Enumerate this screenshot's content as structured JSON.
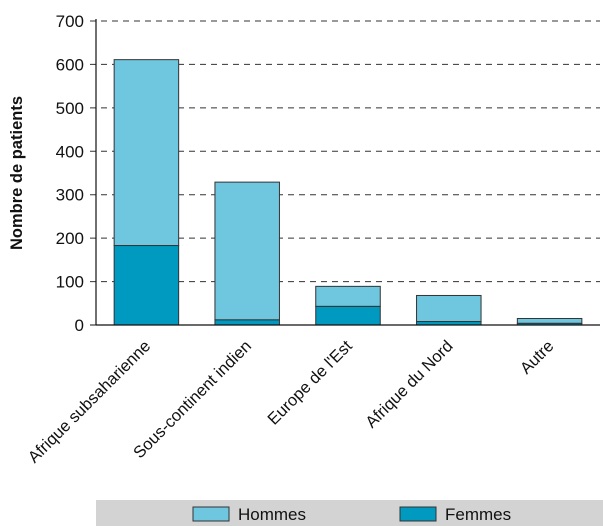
{
  "chart_data": {
    "type": "bar",
    "stacked": true,
    "title": "",
    "xlabel": "",
    "ylabel": "Nombre de patients",
    "ylim": [
      0,
      700
    ],
    "yticks": [
      0,
      100,
      200,
      300,
      400,
      500,
      600,
      700
    ],
    "grid": true,
    "legend_position": "bottom",
    "categories": [
      "Afrique subsaharienne",
      "Sous-continent indien",
      "Europe de l'Est",
      "Afrique du Nord",
      "Autre"
    ],
    "series": [
      {
        "name": "Femmes",
        "color": "#0099bf",
        "values": [
          183,
          12,
          43,
          8,
          4
        ]
      },
      {
        "name": "Hommes",
        "color": "#6fc6df",
        "values": [
          428,
          317,
          46,
          60,
          11
        ]
      }
    ],
    "legend": [
      "Hommes",
      "Femmes"
    ],
    "colors": {
      "grid": "#333333",
      "axis": "#111111",
      "bar_stroke": "#333333",
      "legend_bg": "#d3d3d3"
    }
  }
}
